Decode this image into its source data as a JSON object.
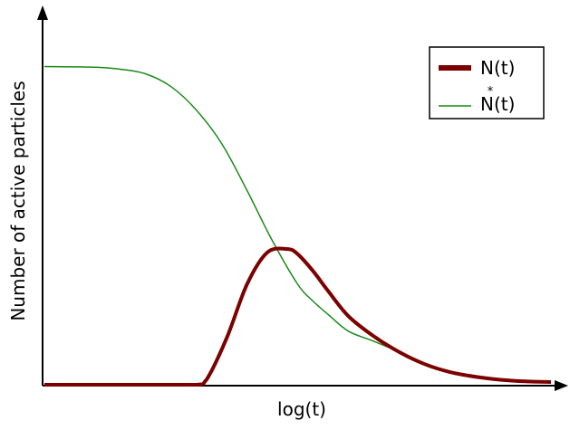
{
  "chart_data": {
    "type": "line",
    "title": "",
    "xlabel": "log(t)",
    "ylabel": "Number of active particles",
    "x_ticks": "none",
    "y_ticks": "none",
    "grid": false,
    "xlim": [
      0,
      10
    ],
    "ylim": [
      0,
      10
    ],
    "legend": {
      "placement": "top-right",
      "entries": [
        {
          "label": "N(t)",
          "marker_above": ""
        },
        {
          "label": "N(t)",
          "marker_above": "*"
        }
      ]
    },
    "series": [
      {
        "name": "N(t)",
        "color": "#7b0000",
        "style": "thick",
        "x": [
          0,
          1,
          2,
          3,
          3.2,
          3.6,
          4.0,
          4.4,
          4.8,
          5.0,
          5.3,
          5.6,
          6.0,
          6.5,
          7.0,
          7.5,
          8.0,
          8.5,
          9.0,
          9.5,
          10
        ],
        "y": [
          0,
          0,
          0,
          0,
          0.15,
          1.4,
          3.0,
          3.95,
          4.05,
          3.9,
          3.4,
          2.8,
          2.05,
          1.45,
          0.98,
          0.62,
          0.38,
          0.24,
          0.15,
          0.1,
          0.08
        ]
      },
      {
        "name": "N(t)",
        "color": "#1a8a1a",
        "style": "thin",
        "x": [
          0,
          1,
          1.5,
          2.0,
          2.5,
          3.0,
          3.5,
          4.0,
          4.5,
          5.0,
          5.3,
          5.6,
          6.0,
          6.5,
          7.0,
          7.5,
          8.0,
          8.5,
          9.0,
          9.5,
          10
        ],
        "y": [
          9.5,
          9.48,
          9.42,
          9.28,
          8.9,
          8.2,
          7.2,
          5.8,
          4.3,
          3.0,
          2.5,
          2.1,
          1.6,
          1.3,
          0.98,
          0.62,
          0.38,
          0.24,
          0.15,
          0.1,
          0.08
        ]
      }
    ]
  }
}
